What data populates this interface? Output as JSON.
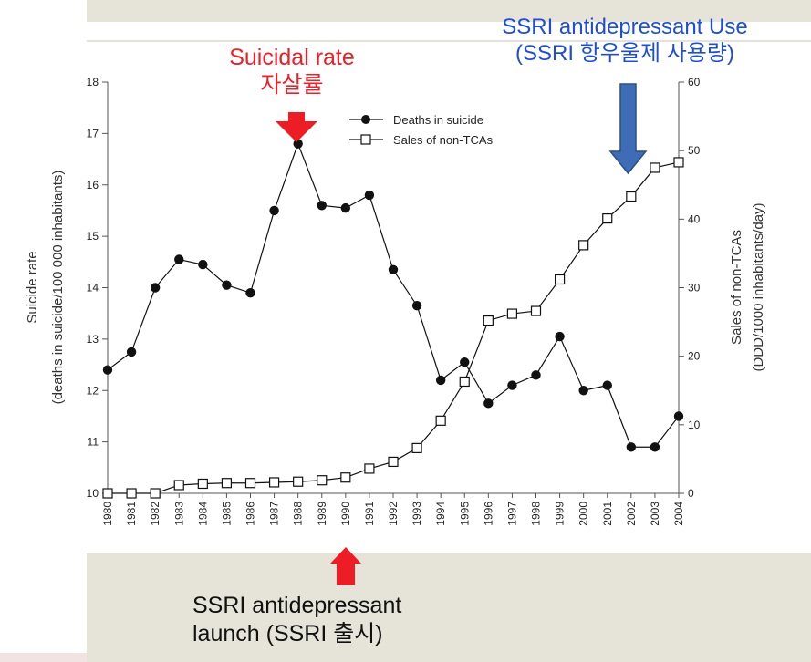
{
  "annotations": {
    "suicidal_rate_en": "Suicidal rate",
    "suicidal_rate_ko": "자살률",
    "ssri_use_en": "SSRI antidepressant Use",
    "ssri_use_ko": "(SSRI 항우울제 사용량)",
    "launch_line1": "SSRI antidepressant",
    "launch_line2": "launch (SSRI 출시)"
  },
  "colors": {
    "red_arrow": "#ee1c25",
    "blue_arrow": "#3e6db5",
    "band": "#e6e3d8"
  },
  "chart_data": {
    "type": "line",
    "xlabel": "",
    "ylabel_left": [
      "Suicide rate",
      "(deaths in suicide/100 000 inhabitants)"
    ],
    "ylabel_right": [
      "Sales of non-TCAs",
      "(DDD/1000 inhabitants/day)"
    ],
    "categories": [
      "1980",
      "1981",
      "1982",
      "1983",
      "1984",
      "1985",
      "1986",
      "1987",
      "1988",
      "1989",
      "1990",
      "1991",
      "1992",
      "1993",
      "1994",
      "1995",
      "1996",
      "1997",
      "1998",
      "1999",
      "2000",
      "2001",
      "2002",
      "2003",
      "2004"
    ],
    "ylim_left": [
      10,
      18
    ],
    "yticks_left": [
      10,
      11,
      12,
      13,
      14,
      15,
      16,
      17,
      18
    ],
    "ylim_right": [
      0,
      60
    ],
    "yticks_right": [
      0,
      10,
      20,
      30,
      40,
      50,
      60
    ],
    "grid": false,
    "legend_position": "top-center",
    "series": [
      {
        "name": "Deaths in suicide",
        "axis": "left",
        "marker": "filled-circle",
        "values": [
          12.4,
          12.75,
          14.0,
          14.55,
          14.45,
          14.05,
          13.9,
          15.5,
          16.8,
          15.6,
          15.55,
          15.8,
          14.35,
          13.65,
          12.2,
          12.55,
          11.75,
          12.1,
          12.3,
          13.05,
          12.0,
          12.1,
          10.9,
          10.9,
          11.5
        ]
      },
      {
        "name": "Sales of non-TCAs",
        "axis": "right",
        "marker": "open-square",
        "values": [
          0,
          0,
          0,
          1.2,
          1.4,
          1.5,
          1.5,
          1.6,
          1.7,
          1.9,
          2.3,
          3.6,
          4.6,
          6.6,
          10.6,
          16.3,
          25.2,
          26.2,
          26.6,
          31.2,
          36.2,
          40.1,
          43.3,
          47.5,
          48.3
        ]
      }
    ]
  }
}
